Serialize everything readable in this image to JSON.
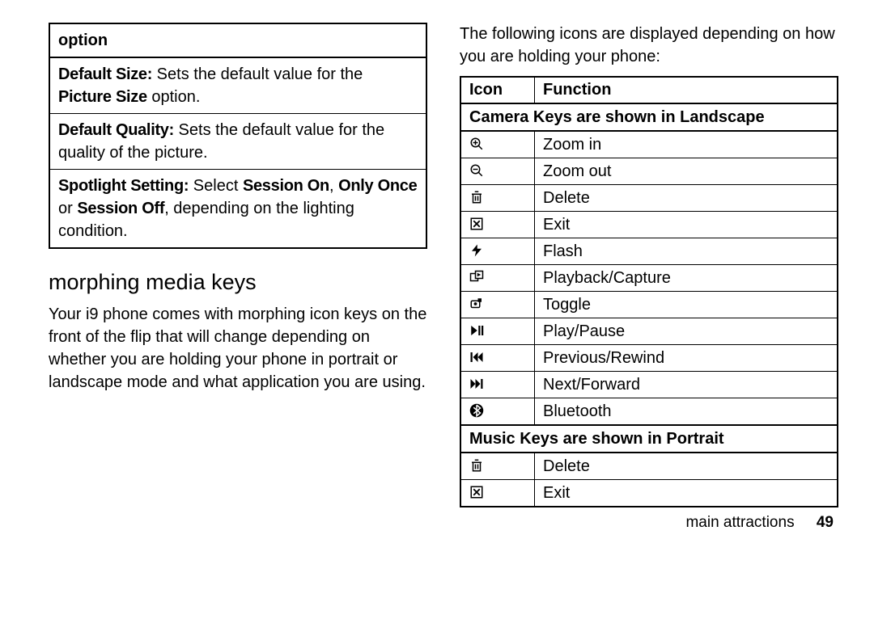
{
  "left": {
    "option_header": "option",
    "rows": [
      {
        "lead": "Default Size:",
        "before": " Sets the default value for the ",
        "bold2": "Picture Size",
        "after": " option."
      },
      {
        "lead": "Default Quality:",
        "before": " Sets the default value for the quality of the picture.",
        "bold2": "",
        "after": ""
      },
      {
        "lead": "Spotlight Setting:",
        "before": " Select ",
        "bold2": "Session On",
        "comma": ", ",
        "bold3": "Only Once",
        "mid": " or ",
        "bold4": "Session Off",
        "after": ", depending on the lighting condition."
      }
    ],
    "section_title": "morphing media keys",
    "section_body": "Your i9 phone comes with morphing icon keys on the front of the flip that will change depending on whether you are holding your phone in portrait or landscape mode and what application you are using."
  },
  "right": {
    "intro": "The following icons are displayed depending on how you are holding your phone:",
    "table": {
      "head_icon": "Icon",
      "head_func": "Function",
      "sub_landscape": "Camera Keys are shown in Landscape",
      "rows_landscape": [
        {
          "icon": "zoom-in",
          "label": "Zoom in"
        },
        {
          "icon": "zoom-out",
          "label": "Zoom out"
        },
        {
          "icon": "delete",
          "label": "Delete"
        },
        {
          "icon": "exit",
          "label": "Exit"
        },
        {
          "icon": "flash",
          "label": "Flash"
        },
        {
          "icon": "playback",
          "label": "Playback/Capture"
        },
        {
          "icon": "toggle",
          "label": "Toggle"
        },
        {
          "icon": "playpause",
          "label": "Play/Pause"
        },
        {
          "icon": "prev",
          "label": "Previous/Rewind"
        },
        {
          "icon": "next",
          "label": "Next/Forward"
        },
        {
          "icon": "bluetooth",
          "label": "Bluetooth"
        }
      ],
      "sub_portrait": "Music Keys are shown in Portrait",
      "rows_portrait": [
        {
          "icon": "delete",
          "label": "Delete"
        },
        {
          "icon": "exit",
          "label": "Exit"
        }
      ]
    }
  },
  "footer": {
    "section": "main attractions",
    "page": "49"
  },
  "icons": {
    "zoom-in": "<svg class='icon' viewBox='0 0 24 24'><circle cx='10' cy='10' r='7' fill='none' stroke='#000' stroke-width='2'/><line x1='15' y1='15' x2='21' y2='21' stroke='#000' stroke-width='2'/><line x1='10' y1='6' x2='10' y2='14' stroke='#000' stroke-width='2'/><line x1='6' y1='10' x2='14' y2='10' stroke='#000' stroke-width='2'/></svg>",
    "zoom-out": "<svg class='icon' viewBox='0 0 24 24'><circle cx='10' cy='10' r='7' fill='none' stroke='#000' stroke-width='2'/><line x1='15' y1='15' x2='21' y2='21' stroke='#000' stroke-width='2'/><line x1='6' y1='10' x2='14' y2='10' stroke='#000' stroke-width='2'/></svg>",
    "delete": "<svg class='icon' viewBox='0 0 24 24'><rect x='6' y='7' width='12' height='14' fill='none' stroke='#000' stroke-width='2'/><line x1='4' y1='7' x2='20' y2='7' stroke='#000' stroke-width='2'/><line x1='9' y1='3' x2='15' y2='3' stroke='#000' stroke-width='2'/><line x1='10' y1='10' x2='10' y2='18' stroke='#000' stroke-width='2'/><line x1='14' y1='10' x2='14' y2='18' stroke='#000' stroke-width='2'/></svg>",
    "exit": "<svg class='icon' viewBox='0 0 24 24'><rect x='3' y='3' width='18' height='18' fill='none' stroke='#000' stroke-width='2'/><line x1='7' y1='7' x2='17' y2='17' stroke='#000' stroke-width='2.5'/><line x1='17' y1='7' x2='7' y2='17' stroke='#000' stroke-width='2.5'/></svg>",
    "flash": "<svg class='icon' viewBox='0 0 24 24'><polygon points='13,2 4,13 11,13 9,22 20,9 13,9' fill='#000'/></svg>",
    "playback": "<svg class='icon' viewBox='0 0 24 24'><rect x='2' y='6' width='12' height='12' fill='none' stroke='#000' stroke-width='2'/><rect x='10' y='2' width='12' height='12' fill='#fff' stroke='#000' stroke-width='2'/><polygon points='13,5 13,11 19,8' fill='#000'/></svg>",
    "toggle": "<svg class='icon' viewBox='0 0 24 24'><rect x='3' y='7' width='14' height='11' rx='2' fill='none' stroke='#000' stroke-width='2'/><rect x='14' y='3' width='6' height='6' fill='#000'/><circle cx='10' cy='12' r='2.5' fill='#000'/></svg>",
    "playpause": "<svg class='icon' viewBox='0 0 24 24'><polygon points='3,4 3,20 13,12' fill='#000'/><rect x='15' y='4' width='3' height='16' fill='#000'/><rect x='20' y='4' width='3' height='16' fill='#000'/></svg>",
    "prev": "<svg class='icon' viewBox='0 0 24 24'><rect x='2' y='4' width='3' height='16' fill='#000'/><polygon points='14,4 14,20 6,12' fill='#000'/><polygon points='22,4 22,20 14,12' fill='#000'/></svg>",
    "next": "<svg class='icon' viewBox='0 0 24 24'><polygon points='2,4 2,20 10,12' fill='#000'/><polygon points='10,4 10,20 18,12' fill='#000'/><rect x='19' y='4' width='3' height='16' fill='#000'/></svg>",
    "bluetooth": "<svg class='icon' viewBox='0 0 24 24'><circle cx='12' cy='12' r='11' fill='#000'/><path d='M12 3 L12 21 L18 16 L7 7 M12 3 L18 8 L7 17' fill='none' stroke='#fff' stroke-width='2'/></svg>"
  }
}
